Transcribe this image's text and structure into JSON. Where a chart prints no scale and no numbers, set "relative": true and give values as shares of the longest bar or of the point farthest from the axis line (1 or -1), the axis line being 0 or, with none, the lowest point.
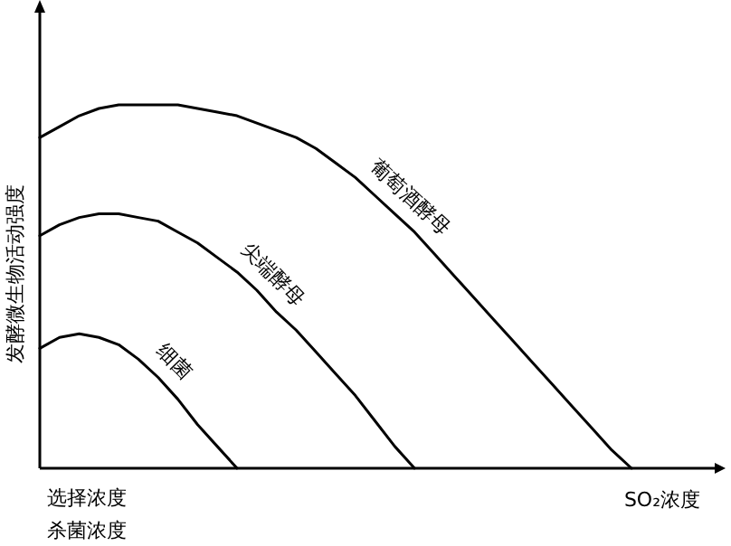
{
  "chart_data": {
    "type": "line",
    "relative": true,
    "ylabel": "发酵微生物活动强度",
    "xlabel": "SO₂浓度",
    "annotations": [
      "选择浓度",
      "杀菌浓度"
    ],
    "marker": "none",
    "line_style": "solid",
    "legend": false,
    "grid": false,
    "categories": [
      null,
      null,
      null,
      null,
      null,
      null,
      null,
      null,
      null,
      null,
      null,
      null,
      null,
      null,
      null,
      null,
      null,
      null,
      null,
      null,
      null,
      null,
      null,
      null,
      null,
      null,
      null,
      null,
      null,
      null,
      null
    ],
    "series": [
      {
        "name": "葡萄酒酵母",
        "color": "#000000",
        "values": [
          0.91,
          0.94,
          0.97,
          0.99,
          1.0,
          1.0,
          1.0,
          1.0,
          0.99,
          0.98,
          0.97,
          0.95,
          0.93,
          0.91,
          0.88,
          0.84,
          0.8,
          0.75,
          0.7,
          0.65,
          0.59,
          0.53,
          0.47,
          0.41,
          0.35,
          0.29,
          0.23,
          0.17,
          0.11,
          0.05,
          0
        ]
      },
      {
        "name": "尖端酵母",
        "color": "#000000",
        "values": [
          0.64,
          0.67,
          0.69,
          0.7,
          0.7,
          0.69,
          0.68,
          0.65,
          0.62,
          0.58,
          0.54,
          0.49,
          0.43,
          0.38,
          0.32,
          0.26,
          0.2,
          0.13,
          0.06,
          0,
          null,
          null,
          null,
          null,
          null,
          null,
          null,
          null,
          null,
          null,
          null
        ]
      },
      {
        "name": "细菌",
        "color": "#000000",
        "values": [
          0.33,
          0.36,
          0.37,
          0.36,
          0.34,
          0.3,
          0.25,
          0.19,
          0.12,
          0.06,
          0,
          null,
          null,
          null,
          null,
          null,
          null,
          null,
          null,
          null,
          null,
          null,
          null,
          null,
          null,
          null,
          null,
          null,
          null,
          null,
          null
        ]
      }
    ]
  }
}
